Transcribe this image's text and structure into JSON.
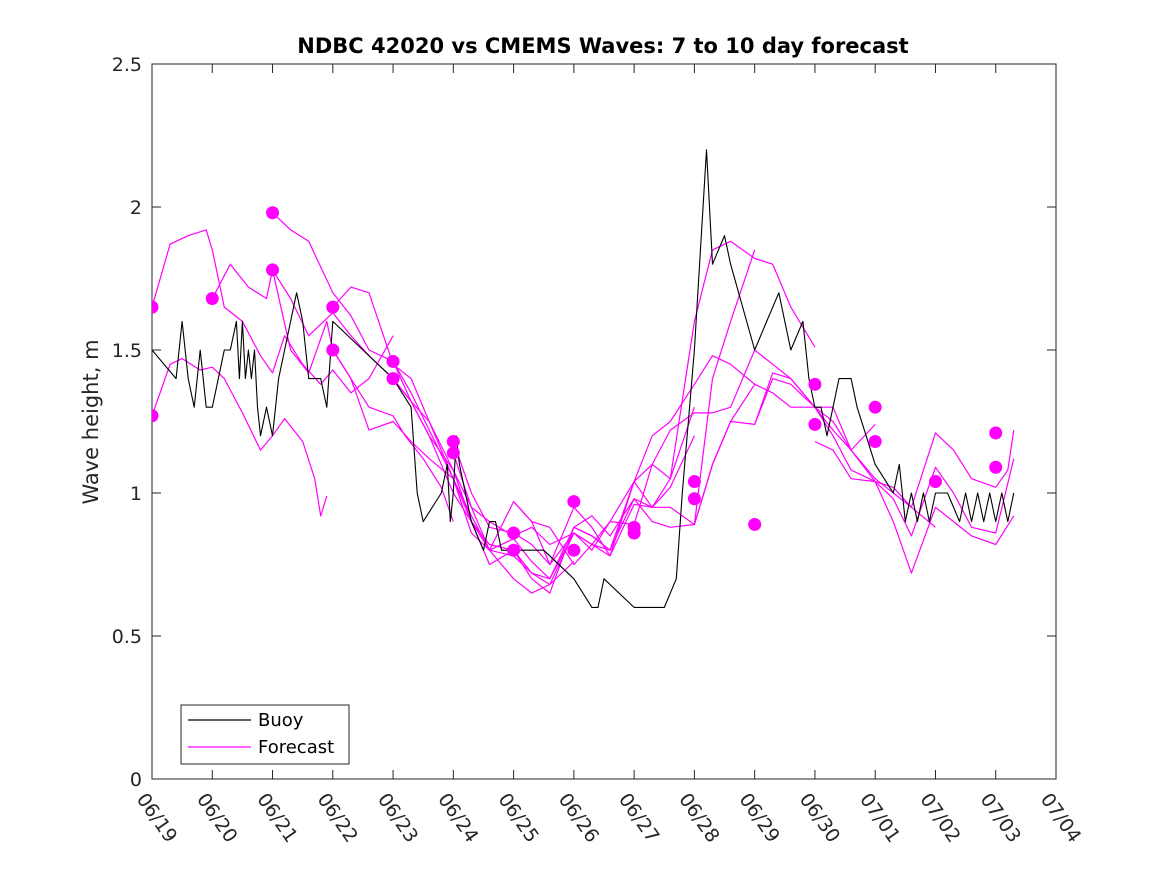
{
  "chart_data": {
    "type": "line",
    "title": "NDBC 42020 vs CMEMS Waves: 7 to 10 day forecast",
    "xlabel": "",
    "ylabel": "Wave height, m",
    "xlim": [
      "06/19",
      "07/04"
    ],
    "ylim": [
      0,
      2.5
    ],
    "y_ticks": [
      "0",
      "0.5",
      "1",
      "1.5",
      "2",
      "2.5"
    ],
    "x_ticks": [
      "06/19",
      "06/20",
      "06/21",
      "06/22",
      "06/23",
      "06/24",
      "06/25",
      "06/26",
      "06/27",
      "06/28",
      "06/29",
      "06/30",
      "07/01",
      "07/02",
      "07/03",
      "07/04"
    ],
    "grid": false,
    "legend_position": "bottom-left",
    "colors": {
      "buoy": "#000000",
      "forecast": "#ff00ff"
    },
    "buoy": {
      "name": "Buoy",
      "x_day": [
        0.0,
        0.4,
        0.5,
        0.6,
        0.7,
        0.8,
        0.9,
        1.0,
        1.1,
        1.2,
        1.3,
        1.4,
        1.45,
        1.5,
        1.55,
        1.6,
        1.65,
        1.7,
        1.75,
        1.8,
        1.9,
        2.0,
        2.1,
        2.2,
        2.3,
        2.4,
        2.5,
        2.55,
        2.6,
        2.7,
        2.8,
        2.9,
        3.0,
        3.5,
        4.0,
        4.3,
        4.4,
        4.5,
        4.8,
        4.9,
        4.95,
        5.0,
        5.05,
        5.1,
        5.2,
        5.3,
        5.5,
        5.6,
        5.7,
        5.8,
        5.9,
        6.0,
        6.5,
        7.0,
        7.3,
        7.4,
        7.5,
        8.0,
        8.5,
        8.7,
        8.8,
        9.0,
        9.2,
        9.3,
        9.5,
        9.6,
        10.0,
        10.2,
        10.4,
        10.6,
        10.8,
        10.9,
        11.0,
        11.1,
        11.2,
        11.3,
        11.4,
        11.5,
        11.6,
        11.7,
        12.0,
        12.3,
        12.4,
        12.5,
        12.6,
        12.7,
        12.8,
        12.9,
        13.0,
        13.2,
        13.4,
        13.5,
        13.6,
        13.7,
        13.8,
        13.9,
        14.0,
        14.1,
        14.2,
        14.3
      ],
      "values": [
        1.5,
        1.4,
        1.6,
        1.4,
        1.3,
        1.5,
        1.3,
        1.3,
        1.4,
        1.5,
        1.5,
        1.6,
        1.4,
        1.6,
        1.4,
        1.5,
        1.4,
        1.5,
        1.3,
        1.2,
        1.3,
        1.2,
        1.4,
        1.5,
        1.6,
        1.7,
        1.6,
        1.5,
        1.4,
        1.4,
        1.4,
        1.3,
        1.6,
        1.5,
        1.4,
        1.3,
        1.0,
        0.9,
        1.0,
        1.1,
        0.9,
        1.0,
        1.2,
        1.1,
        1.0,
        0.9,
        0.8,
        0.9,
        0.9,
        0.8,
        0.8,
        0.8,
        0.8,
        0.7,
        0.6,
        0.6,
        0.7,
        0.6,
        0.6,
        0.7,
        1.0,
        1.5,
        2.2,
        1.8,
        1.9,
        1.8,
        1.5,
        1.6,
        1.7,
        1.5,
        1.6,
        1.4,
        1.3,
        1.3,
        1.2,
        1.3,
        1.4,
        1.4,
        1.4,
        1.3,
        1.1,
        1.0,
        1.1,
        0.9,
        1.0,
        0.9,
        1.0,
        0.9,
        1.0,
        1.0,
        0.9,
        1.0,
        0.9,
        1.0,
        0.9,
        1.0,
        0.9,
        1.0,
        0.9,
        1.0
      ]
    },
    "forecast": {
      "name": "Forecast",
      "series": [
        {
          "x_day": [
            0.0,
            0.3,
            0.5,
            0.8,
            1.0,
            1.2,
            1.5,
            1.8,
            2.0,
            2.2,
            2.5,
            2.7,
            2.8,
            2.9
          ],
          "values": [
            1.27,
            1.45,
            1.47,
            1.43,
            1.44,
            1.4,
            1.28,
            1.15,
            1.2,
            1.26,
            1.18,
            1.05,
            0.92,
            0.99
          ]
        },
        {
          "x_day": [
            0.0,
            0.3,
            0.6,
            0.9,
            1.0,
            1.2,
            1.5,
            1.8,
            2.0,
            2.2,
            2.5,
            2.8,
            3.0,
            3.3,
            3.6,
            4.0
          ],
          "values": [
            1.65,
            1.87,
            1.9,
            1.92,
            1.85,
            1.65,
            1.6,
            1.48,
            1.42,
            1.55,
            1.45,
            1.38,
            1.43,
            1.35,
            1.4,
            1.55
          ]
        },
        {
          "x_day": [
            1.0,
            1.3,
            1.6,
            1.9,
            2.0,
            2.3,
            2.6,
            2.9,
            3.0,
            3.3,
            3.6,
            4.0,
            4.2,
            4.5,
            4.8,
            5.0
          ],
          "values": [
            1.68,
            1.8,
            1.72,
            1.68,
            1.78,
            1.5,
            1.42,
            1.6,
            1.5,
            1.4,
            1.3,
            1.27,
            1.2,
            1.12,
            1.02,
            0.9
          ]
        },
        {
          "x_day": [
            2.0,
            2.3,
            2.6,
            3.0,
            3.3,
            3.6,
            4.0,
            4.3,
            4.6,
            5.0,
            5.3,
            5.6,
            6.0,
            6.3,
            6.6,
            7.0
          ],
          "values": [
            1.98,
            1.92,
            1.88,
            1.7,
            1.62,
            1.5,
            1.46,
            1.32,
            1.2,
            1.08,
            0.95,
            0.9,
            0.85,
            0.88,
            0.82,
            0.86
          ]
        },
        {
          "x_day": [
            2.0,
            2.3,
            2.6,
            3.0,
            3.3,
            3.6,
            4.0,
            4.3,
            4.6,
            5.0,
            5.3,
            5.6,
            6.0,
            6.3,
            6.6,
            7.0
          ],
          "values": [
            1.78,
            1.68,
            1.55,
            1.63,
            1.55,
            1.48,
            1.4,
            1.32,
            1.25,
            1.08,
            0.9,
            0.82,
            0.8,
            0.72,
            0.68,
            0.76
          ]
        },
        {
          "x_day": [
            3.0,
            3.3,
            3.6,
            4.0,
            4.3,
            4.6,
            5.0,
            5.3,
            5.6,
            6.0,
            6.3,
            6.6,
            7.0,
            7.3,
            7.6,
            8.0
          ],
          "values": [
            1.65,
            1.72,
            1.7,
            1.45,
            1.4,
            1.25,
            1.05,
            0.92,
            0.8,
            0.78,
            0.72,
            0.7,
            0.86,
            0.82,
            0.8,
            1.04
          ]
        },
        {
          "x_day": [
            3.0,
            3.3,
            3.6,
            4.0,
            4.3,
            4.6,
            5.0,
            5.3,
            5.6,
            6.0,
            6.3,
            6.6,
            7.0,
            7.3,
            7.6,
            8.0
          ],
          "values": [
            1.5,
            1.4,
            1.22,
            1.25,
            1.18,
            1.12,
            1.05,
            0.86,
            0.8,
            0.84,
            0.76,
            0.7,
            0.88,
            0.92,
            0.85,
            0.98
          ]
        },
        {
          "x_day": [
            4.0,
            4.3,
            4.6,
            5.0,
            5.3,
            5.6,
            6.0,
            6.3,
            6.6,
            7.0,
            7.3,
            7.6,
            8.0,
            8.3,
            8.6,
            9.0
          ],
          "values": [
            1.46,
            1.35,
            1.22,
            1.05,
            0.9,
            0.8,
            0.97,
            0.9,
            0.88,
            0.75,
            0.82,
            0.9,
            1.04,
            0.95,
            1.05,
            1.3
          ]
        },
        {
          "x_day": [
            4.0,
            4.3,
            4.6,
            5.0,
            5.3,
            5.6,
            6.0,
            6.3,
            6.6,
            7.0,
            7.3,
            7.6,
            8.0,
            8.3,
            8.6,
            9.0
          ],
          "values": [
            1.4,
            1.32,
            1.2,
            1.0,
            0.9,
            0.75,
            0.8,
            0.7,
            0.65,
            0.88,
            0.85,
            0.8,
            0.98,
            0.95,
            1.02,
            1.2
          ]
        },
        {
          "x_day": [
            5.0,
            5.3,
            5.6,
            6.0,
            6.3,
            6.6,
            7.0,
            7.3,
            7.6,
            8.0,
            8.3,
            8.6,
            9.0,
            9.3,
            9.6,
            10.0
          ],
          "values": [
            1.18,
            1.0,
            0.88,
            0.86,
            0.82,
            0.75,
            0.95,
            0.88,
            0.78,
            0.96,
            0.95,
            0.95,
            0.89,
            1.4,
            1.6,
            1.85
          ]
        },
        {
          "x_day": [
            5.0,
            5.3,
            5.6,
            6.0,
            6.3,
            6.6,
            7.0,
            7.3,
            7.6,
            8.0,
            8.3,
            8.6,
            9.0,
            9.3,
            9.6,
            10.0
          ],
          "values": [
            1.14,
            0.95,
            0.8,
            0.7,
            0.65,
            0.68,
            0.86,
            0.82,
            0.78,
            1.04,
            1.2,
            1.25,
            1.38,
            1.48,
            1.45,
            1.38
          ]
        },
        {
          "x_day": [
            6.0,
            6.3,
            6.6,
            7.0,
            7.3,
            7.6,
            8.0,
            8.3,
            8.6,
            9.0,
            9.3,
            9.6,
            10.0,
            10.3,
            10.6,
            11.0
          ],
          "values": [
            0.97,
            0.9,
            0.75,
            0.86,
            0.8,
            0.9,
            0.89,
            1.1,
            1.05,
            1.6,
            1.85,
            1.88,
            1.82,
            1.8,
            1.65,
            1.51
          ]
        },
        {
          "x_day": [
            7.0,
            7.3,
            7.6,
            8.0,
            8.3,
            8.6,
            9.0,
            9.3,
            9.6,
            10.0,
            10.3,
            10.6,
            11.0,
            11.3,
            11.6,
            12.0
          ],
          "values": [
            0.88,
            0.85,
            0.8,
            1.04,
            1.1,
            1.22,
            1.28,
            1.28,
            1.3,
            1.5,
            1.45,
            1.4,
            1.3,
            1.3,
            1.15,
            1.24
          ]
        },
        {
          "x_day": [
            8.0,
            8.3,
            8.6,
            9.0,
            9.3,
            9.6,
            10.0,
            10.3,
            10.6,
            11.0,
            11.3,
            11.6,
            12.0,
            12.3,
            12.6,
            13.0
          ],
          "values": [
            0.98,
            0.9,
            0.88,
            0.89,
            1.1,
            1.25,
            1.38,
            1.35,
            1.3,
            1.3,
            1.25,
            1.15,
            1.05,
            1.0,
            0.95,
            0.88
          ]
        },
        {
          "x_day": [
            9.0,
            9.3,
            9.6,
            10.0,
            10.3,
            10.6,
            11.0,
            11.3,
            11.6,
            12.0,
            12.3,
            12.6,
            13.0,
            13.3,
            13.6,
            14.0,
            14.2,
            14.3
          ],
          "values": [
            0.89,
            1.1,
            1.25,
            1.24,
            1.42,
            1.4,
            1.3,
            1.2,
            1.08,
            1.04,
            1.02,
            0.95,
            1.21,
            1.15,
            1.05,
            1.02,
            1.08,
            1.22
          ]
        },
        {
          "x_day": [
            10.0,
            10.3,
            10.6,
            11.0,
            11.3,
            11.6,
            12.0,
            12.3,
            12.6,
            13.0,
            13.3,
            13.6,
            14.0,
            14.3
          ],
          "values": [
            1.24,
            1.4,
            1.38,
            1.3,
            1.22,
            1.15,
            1.04,
            0.9,
            0.72,
            0.95,
            0.9,
            0.85,
            0.82,
            0.92
          ]
        },
        {
          "x_day": [
            11.0,
            11.3,
            11.6,
            12.0,
            12.3,
            12.6,
            13.0,
            13.3,
            13.6,
            14.0,
            14.3
          ],
          "values": [
            1.18,
            1.15,
            1.05,
            1.04,
            0.98,
            0.85,
            1.09,
            1.0,
            0.88,
            0.86,
            1.12
          ]
        }
      ],
      "marker_points": [
        [
          0.0,
          1.65
        ],
        [
          0.0,
          1.27
        ],
        [
          1.0,
          1.68
        ],
        [
          2.0,
          1.98
        ],
        [
          2.0,
          1.78
        ],
        [
          3.0,
          1.65
        ],
        [
          3.0,
          1.5
        ],
        [
          4.0,
          1.46
        ],
        [
          4.0,
          1.4
        ],
        [
          5.0,
          1.18
        ],
        [
          5.0,
          1.14
        ],
        [
          6.0,
          0.86
        ],
        [
          6.0,
          0.8
        ],
        [
          7.0,
          0.97
        ],
        [
          7.0,
          0.8
        ],
        [
          8.0,
          0.88
        ],
        [
          8.0,
          0.86
        ],
        [
          9.0,
          1.04
        ],
        [
          9.0,
          0.98
        ],
        [
          10.0,
          0.89
        ],
        [
          11.0,
          1.38
        ],
        [
          11.0,
          1.24
        ],
        [
          12.0,
          1.3
        ],
        [
          12.0,
          1.18
        ],
        [
          13.0,
          1.04
        ],
        [
          14.0,
          1.21
        ],
        [
          14.0,
          1.09
        ]
      ]
    }
  }
}
